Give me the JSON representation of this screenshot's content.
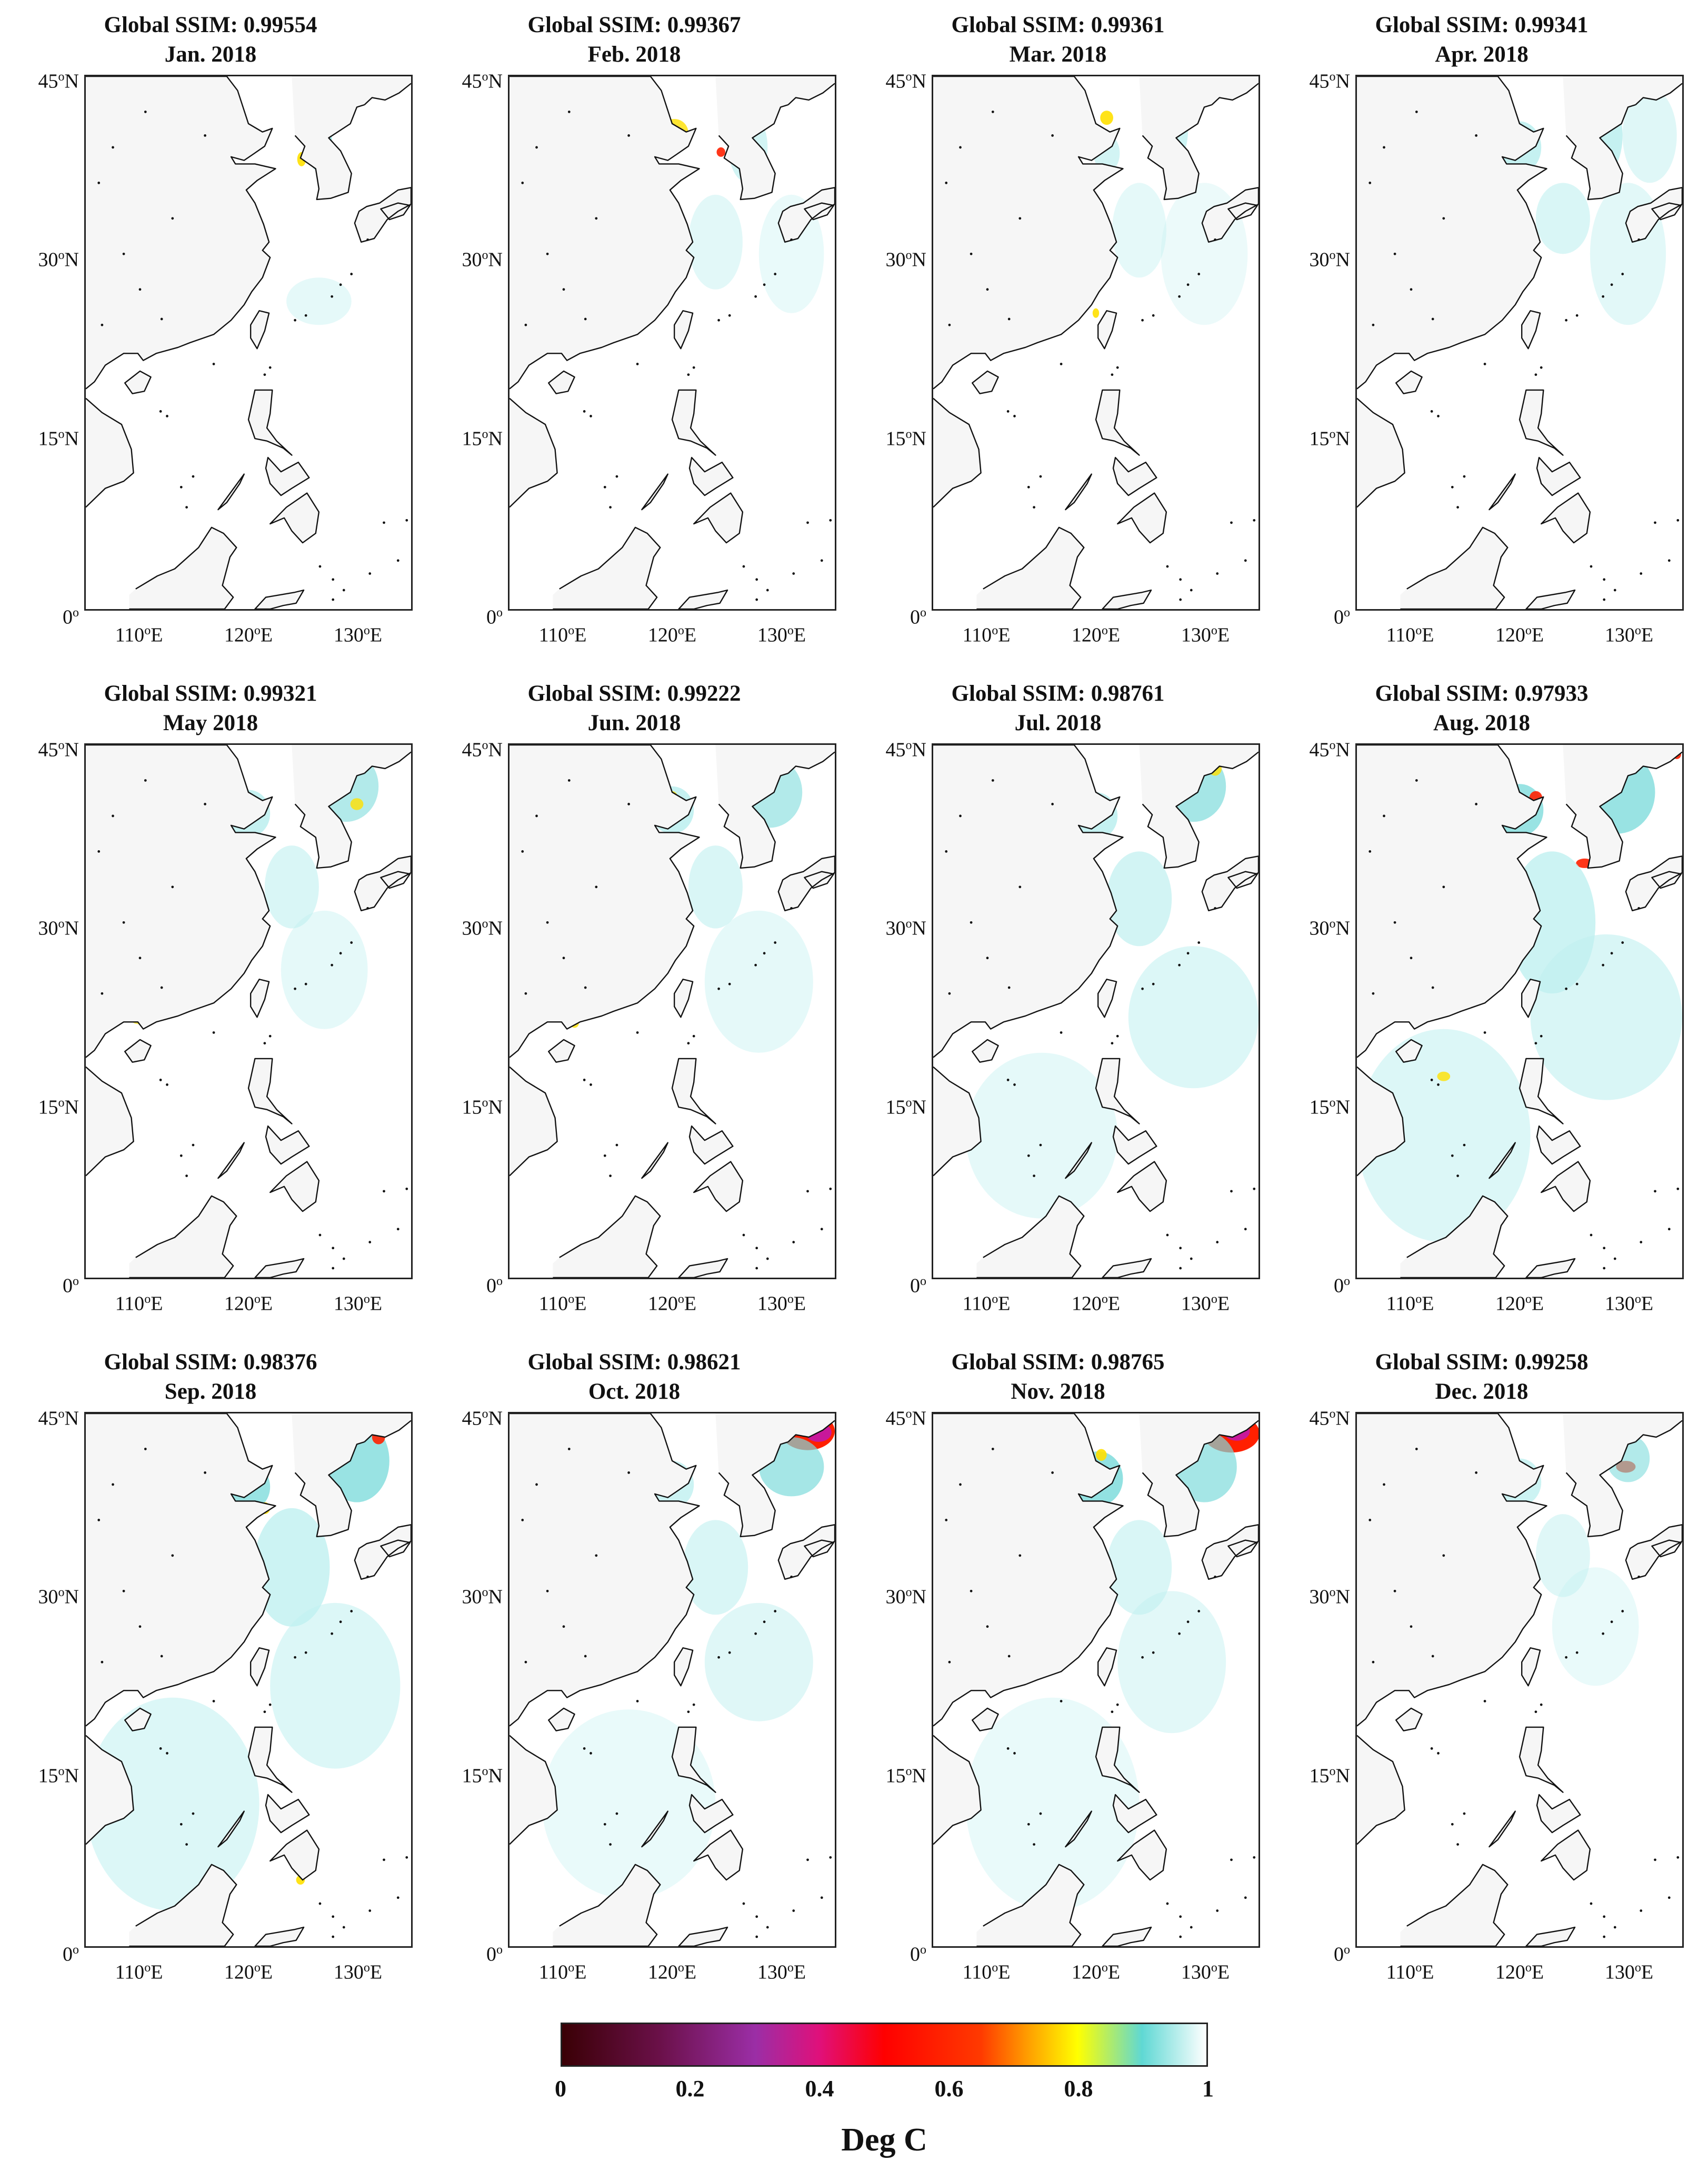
{
  "panels": [
    {
      "ssim_label": "Global SSIM: 0.99554",
      "month": "Jan. 2018",
      "ssim": 0.99554
    },
    {
      "ssim_label": "Global SSIM: 0.99367",
      "month": "Feb. 2018",
      "ssim": 0.99367
    },
    {
      "ssim_label": "Global SSIM: 0.99361",
      "month": "Mar. 2018",
      "ssim": 0.99361
    },
    {
      "ssim_label": "Global SSIM: 0.99341",
      "month": "Apr. 2018",
      "ssim": 0.99341
    },
    {
      "ssim_label": "Global SSIM: 0.99321",
      "month": "May 2018",
      "ssim": 0.99321
    },
    {
      "ssim_label": "Global SSIM: 0.99222",
      "month": "Jun. 2018",
      "ssim": 0.99222
    },
    {
      "ssim_label": "Global SSIM: 0.98761",
      "month": "Jul. 2018",
      "ssim": 0.98761
    },
    {
      "ssim_label": "Global SSIM: 0.97933",
      "month": "Aug. 2018",
      "ssim": 0.97933
    },
    {
      "ssim_label": "Global SSIM: 0.98376",
      "month": "Sep. 2018",
      "ssim": 0.98376
    },
    {
      "ssim_label": "Global SSIM: 0.98621",
      "month": "Oct. 2018",
      "ssim": 0.98621
    },
    {
      "ssim_label": "Global SSIM: 0.98765",
      "month": "Nov. 2018",
      "ssim": 0.98765
    },
    {
      "ssim_label": "Global SSIM: 0.99258",
      "month": "Dec. 2018",
      "ssim": 0.99258
    }
  ],
  "axes": {
    "lat_ticks": [
      {
        "value": 45,
        "text": "45",
        "suffix": "N"
      },
      {
        "value": 30,
        "text": "30",
        "suffix": "N"
      },
      {
        "value": 15,
        "text": "15",
        "suffix": "N"
      },
      {
        "value": 0,
        "text": "0",
        "suffix": ""
      }
    ],
    "lon_ticks": [
      {
        "value": 110,
        "text": "110",
        "suffix": "E"
      },
      {
        "value": 120,
        "text": "120",
        "suffix": "E"
      },
      {
        "value": 130,
        "text": "130",
        "suffix": "E"
      }
    ],
    "degree_mark": "o",
    "lat_range": [
      0,
      45
    ],
    "lon_range": [
      105,
      135
    ]
  },
  "colorbar": {
    "label": "Deg C",
    "range": [
      0,
      1
    ],
    "ticks": [
      "0",
      "0.2",
      "0.4",
      "0.6",
      "0.8",
      "1"
    ],
    "stops": [
      {
        "value": 0.0,
        "color": "#3a0005"
      },
      {
        "value": 0.15,
        "color": "#6a1048"
      },
      {
        "value": 0.3,
        "color": "#9b2ea6"
      },
      {
        "value": 0.4,
        "color": "#e0107a"
      },
      {
        "value": 0.5,
        "color": "#ff0000"
      },
      {
        "value": 0.65,
        "color": "#ff3a00"
      },
      {
        "value": 0.72,
        "color": "#ff9a00"
      },
      {
        "value": 0.8,
        "color": "#ffff00"
      },
      {
        "value": 0.9,
        "color": "#5fd8d4"
      },
      {
        "value": 1.0,
        "color": "#ffffff"
      }
    ]
  },
  "colors": {
    "land": "#f6f6f6",
    "coast": "#111111",
    "ocean": "#ffffff",
    "anomaly_light": "#bff0f0",
    "anomaly_cyan": "#7fdcdc",
    "anomaly_yellow": "#ffe000",
    "anomaly_red": "#ff2000",
    "anomaly_magenta": "#c8189a"
  }
}
